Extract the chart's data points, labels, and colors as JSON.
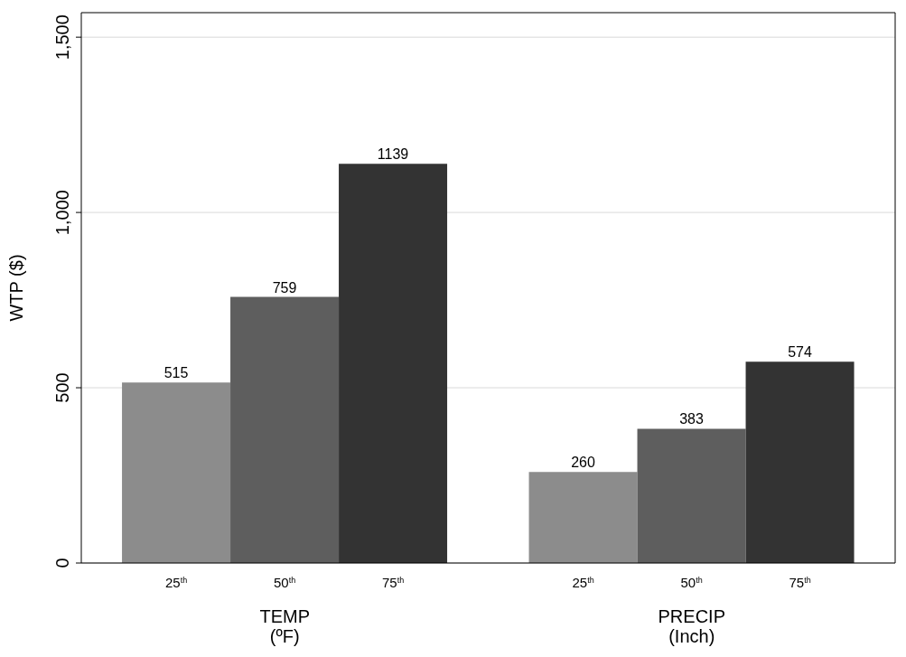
{
  "chart_data": {
    "type": "bar",
    "ylabel": "WTP ($)",
    "categories": [
      "TEMP\n(ºF)",
      "PRECIP\n(Inch)"
    ],
    "series": [
      {
        "name": "25$^{th}$",
        "color": "#8c8c8c",
        "values": [
          515,
          260
        ]
      },
      {
        "name": "50$^{th}$",
        "color": "#5e5e5e",
        "values": [
          759,
          383
        ]
      },
      {
        "name": "75$^{th}$",
        "color": "#333333",
        "values": [
          1139,
          574
        ]
      }
    ],
    "ylim": [
      0,
      1570
    ],
    "yticks": [
      0,
      500,
      {
        "value": 1000,
        "label": "1,000"
      },
      {
        "value": 1500,
        "label": "1,500"
      }
    ],
    "grid": "y",
    "data_labels": true
  }
}
